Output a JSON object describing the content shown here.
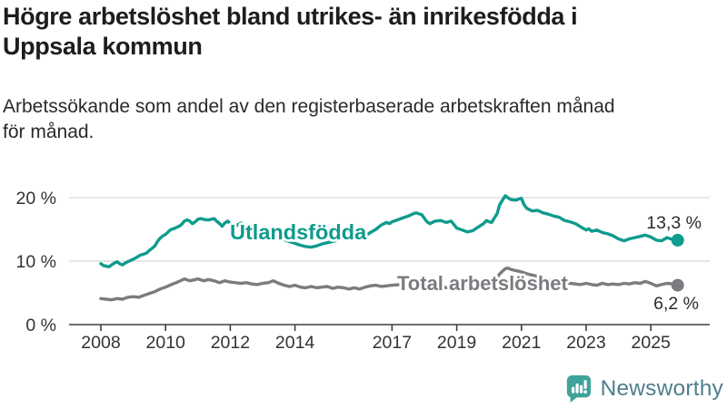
{
  "header": {
    "title_lines": [
      "Högre arbetslöshet bland utrikes- än inrikesfödda i",
      "Uppsala kommun"
    ],
    "subtitle_lines": [
      "Arbetssökande som andel av den registerbaserade arbetskraften månad",
      "för månad."
    ]
  },
  "chart_data": {
    "type": "line",
    "title": "Högre arbetslöshet bland utrikes- än inrikesfödda i Uppsala kommun",
    "subtitle": "Arbetssökande som andel av den registerbaserade arbetskraften månad för månad.",
    "unit": "%",
    "legend_position": "inline-labels",
    "grid": true,
    "colors": {
      "grid": "#d8d8d8",
      "axis": "#3f3f3f",
      "tick_label": "#333333",
      "value_label": "#2c2c2c"
    },
    "x_axis": {
      "ticks": [
        2008,
        2010,
        2012,
        2014,
        2017,
        2019,
        2021,
        2023,
        2025
      ],
      "range": [
        2007.9,
        2026.1
      ]
    },
    "y_axis": {
      "range": [
        0,
        21.5
      ],
      "ticks": [
        {
          "value": 0,
          "label": "0 %",
          "grid": false
        },
        {
          "value": 10,
          "label": "10 %",
          "grid": true
        },
        {
          "value": 20,
          "label": "20 %",
          "grid": true
        }
      ]
    },
    "series": [
      {
        "id": "utlandsfodda",
        "name": "Utlandsfödda",
        "color": "#0f9b8e",
        "end_label": "13,3 %",
        "end_value": 13.3,
        "points": [
          [
            2008.0,
            9.6
          ],
          [
            2008.08,
            9.3
          ],
          [
            2008.17,
            9.2
          ],
          [
            2008.25,
            9.1
          ],
          [
            2008.33,
            9.4
          ],
          [
            2008.42,
            9.7
          ],
          [
            2008.5,
            9.9
          ],
          [
            2008.58,
            9.6
          ],
          [
            2008.67,
            9.4
          ],
          [
            2008.75,
            9.7
          ],
          [
            2008.83,
            9.9
          ],
          [
            2008.92,
            10.1
          ],
          [
            2009.0,
            10.3
          ],
          [
            2009.08,
            10.5
          ],
          [
            2009.17,
            10.8
          ],
          [
            2009.25,
            11.0
          ],
          [
            2009.33,
            11.1
          ],
          [
            2009.42,
            11.3
          ],
          [
            2009.5,
            11.7
          ],
          [
            2009.58,
            12.0
          ],
          [
            2009.67,
            12.4
          ],
          [
            2009.75,
            13.1
          ],
          [
            2009.83,
            13.6
          ],
          [
            2009.92,
            14.0
          ],
          [
            2010.0,
            14.2
          ],
          [
            2010.08,
            14.6
          ],
          [
            2010.17,
            15.0
          ],
          [
            2010.25,
            15.1
          ],
          [
            2010.33,
            15.3
          ],
          [
            2010.42,
            15.5
          ],
          [
            2010.5,
            15.8
          ],
          [
            2010.58,
            16.3
          ],
          [
            2010.67,
            16.5
          ],
          [
            2010.75,
            16.3
          ],
          [
            2010.83,
            15.9
          ],
          [
            2010.92,
            16.2
          ],
          [
            2011.0,
            16.6
          ],
          [
            2011.08,
            16.7
          ],
          [
            2011.17,
            16.6
          ],
          [
            2011.25,
            16.5
          ],
          [
            2011.33,
            16.5
          ],
          [
            2011.42,
            16.6
          ],
          [
            2011.5,
            16.7
          ],
          [
            2011.58,
            16.3
          ],
          [
            2011.67,
            15.9
          ],
          [
            2011.75,
            15.5
          ],
          [
            2011.83,
            16.0
          ],
          [
            2011.92,
            16.3
          ],
          [
            2012.0,
            15.9
          ],
          [
            2012.08,
            15.7
          ],
          [
            2012.17,
            15.5
          ],
          [
            2012.25,
            15.8
          ],
          [
            2012.33,
            16.0
          ],
          [
            2012.5,
            15.7
          ],
          [
            2012.67,
            15.4
          ],
          [
            2012.83,
            15.1
          ],
          [
            2013.0,
            14.8
          ],
          [
            2013.25,
            14.3
          ],
          [
            2013.5,
            13.7
          ],
          [
            2013.75,
            13.2
          ],
          [
            2014.0,
            12.8
          ],
          [
            2014.17,
            12.5
          ],
          [
            2014.33,
            12.3
          ],
          [
            2014.5,
            12.2
          ],
          [
            2014.67,
            12.4
          ],
          [
            2014.83,
            12.7
          ],
          [
            2015.0,
            12.9
          ],
          [
            2015.25,
            13.2
          ],
          [
            2015.5,
            13.6
          ],
          [
            2015.75,
            13.9
          ],
          [
            2016.0,
            14.1
          ],
          [
            2016.17,
            14.0
          ],
          [
            2016.33,
            14.5
          ],
          [
            2016.5,
            15.0
          ],
          [
            2016.67,
            15.7
          ],
          [
            2016.83,
            16.1
          ],
          [
            2016.92,
            15.9
          ],
          [
            2017.0,
            16.2
          ],
          [
            2017.17,
            16.5
          ],
          [
            2017.33,
            16.8
          ],
          [
            2017.5,
            17.1
          ],
          [
            2017.67,
            17.5
          ],
          [
            2017.75,
            17.6
          ],
          [
            2017.92,
            17.3
          ],
          [
            2018.08,
            16.2
          ],
          [
            2018.17,
            15.9
          ],
          [
            2018.33,
            16.3
          ],
          [
            2018.5,
            16.4
          ],
          [
            2018.67,
            16.1
          ],
          [
            2018.83,
            16.3
          ],
          [
            2018.92,
            15.7
          ],
          [
            2019.0,
            15.2
          ],
          [
            2019.17,
            14.9
          ],
          [
            2019.33,
            14.6
          ],
          [
            2019.5,
            14.8
          ],
          [
            2019.67,
            15.4
          ],
          [
            2019.83,
            15.9
          ],
          [
            2019.92,
            16.4
          ],
          [
            2020.0,
            16.2
          ],
          [
            2020.08,
            16.1
          ],
          [
            2020.25,
            17.5
          ],
          [
            2020.33,
            18.9
          ],
          [
            2020.5,
            20.3
          ],
          [
            2020.58,
            20.0
          ],
          [
            2020.67,
            19.7
          ],
          [
            2020.83,
            19.6
          ],
          [
            2020.92,
            19.8
          ],
          [
            2021.0,
            19.9
          ],
          [
            2021.08,
            18.9
          ],
          [
            2021.17,
            18.3
          ],
          [
            2021.33,
            17.9
          ],
          [
            2021.5,
            18.0
          ],
          [
            2021.67,
            17.6
          ],
          [
            2021.83,
            17.4
          ],
          [
            2022.0,
            17.1
          ],
          [
            2022.17,
            16.9
          ],
          [
            2022.33,
            16.4
          ],
          [
            2022.5,
            16.2
          ],
          [
            2022.67,
            15.9
          ],
          [
            2022.83,
            15.4
          ],
          [
            2023.0,
            14.9
          ],
          [
            2023.08,
            15.1
          ],
          [
            2023.17,
            14.7
          ],
          [
            2023.33,
            14.9
          ],
          [
            2023.5,
            14.5
          ],
          [
            2023.67,
            14.3
          ],
          [
            2023.83,
            14.0
          ],
          [
            2024.0,
            13.5
          ],
          [
            2024.17,
            13.2
          ],
          [
            2024.33,
            13.5
          ],
          [
            2024.5,
            13.7
          ],
          [
            2024.67,
            13.9
          ],
          [
            2024.83,
            14.1
          ],
          [
            2025.0,
            13.8
          ],
          [
            2025.17,
            13.3
          ],
          [
            2025.33,
            13.2
          ],
          [
            2025.5,
            13.7
          ],
          [
            2025.67,
            13.4
          ],
          [
            2025.83,
            13.3
          ]
        ]
      },
      {
        "id": "total",
        "name": "Total arbetslöshet",
        "color": "#7b7b80",
        "end_label": "6,2 %",
        "end_value": 6.2,
        "points": [
          [
            2008.0,
            4.1
          ],
          [
            2008.17,
            4.0
          ],
          [
            2008.33,
            3.9
          ],
          [
            2008.5,
            4.1
          ],
          [
            2008.67,
            4.0
          ],
          [
            2008.83,
            4.3
          ],
          [
            2009.0,
            4.4
          ],
          [
            2009.17,
            4.3
          ],
          [
            2009.33,
            4.6
          ],
          [
            2009.5,
            4.9
          ],
          [
            2009.67,
            5.2
          ],
          [
            2009.83,
            5.6
          ],
          [
            2010.0,
            5.9
          ],
          [
            2010.17,
            6.3
          ],
          [
            2010.33,
            6.6
          ],
          [
            2010.5,
            7.0
          ],
          [
            2010.58,
            7.2
          ],
          [
            2010.75,
            6.9
          ],
          [
            2010.92,
            7.1
          ],
          [
            2011.0,
            7.2
          ],
          [
            2011.17,
            6.9
          ],
          [
            2011.33,
            7.1
          ],
          [
            2011.5,
            6.9
          ],
          [
            2011.67,
            6.6
          ],
          [
            2011.83,
            6.9
          ],
          [
            2012.0,
            6.7
          ],
          [
            2012.17,
            6.6
          ],
          [
            2012.33,
            6.5
          ],
          [
            2012.5,
            6.6
          ],
          [
            2012.67,
            6.4
          ],
          [
            2012.83,
            6.3
          ],
          [
            2013.0,
            6.5
          ],
          [
            2013.17,
            6.6
          ],
          [
            2013.33,
            6.9
          ],
          [
            2013.5,
            6.5
          ],
          [
            2013.67,
            6.2
          ],
          [
            2013.83,
            6.0
          ],
          [
            2014.0,
            6.2
          ],
          [
            2014.17,
            5.9
          ],
          [
            2014.33,
            5.8
          ],
          [
            2014.5,
            6.0
          ],
          [
            2014.67,
            5.8
          ],
          [
            2014.83,
            5.9
          ],
          [
            2015.0,
            6.0
          ],
          [
            2015.17,
            5.7
          ],
          [
            2015.33,
            5.9
          ],
          [
            2015.5,
            5.8
          ],
          [
            2015.67,
            5.6
          ],
          [
            2015.83,
            5.8
          ],
          [
            2016.0,
            5.6
          ],
          [
            2016.17,
            5.9
          ],
          [
            2016.33,
            6.1
          ],
          [
            2016.5,
            6.2
          ],
          [
            2016.67,
            6.0
          ],
          [
            2016.83,
            6.1
          ],
          [
            2017.0,
            6.2
          ],
          [
            2017.25,
            6.3
          ],
          [
            2017.5,
            6.3
          ],
          [
            2017.75,
            6.1
          ],
          [
            2018.0,
            6.0
          ],
          [
            2018.25,
            5.9
          ],
          [
            2018.5,
            5.9
          ],
          [
            2018.75,
            5.8
          ],
          [
            2019.0,
            5.8
          ],
          [
            2019.25,
            5.9
          ],
          [
            2019.5,
            6.0
          ],
          [
            2019.75,
            6.1
          ],
          [
            2020.0,
            6.3
          ],
          [
            2020.17,
            6.9
          ],
          [
            2020.33,
            8.0
          ],
          [
            2020.5,
            8.8
          ],
          [
            2020.58,
            8.9
          ],
          [
            2020.67,
            8.7
          ],
          [
            2020.83,
            8.5
          ],
          [
            2021.0,
            8.3
          ],
          [
            2021.17,
            8.0
          ],
          [
            2021.33,
            7.8
          ],
          [
            2021.5,
            7.6
          ],
          [
            2021.67,
            7.3
          ],
          [
            2021.83,
            7.1
          ],
          [
            2022.0,
            6.9
          ],
          [
            2022.17,
            6.7
          ],
          [
            2022.33,
            6.6
          ],
          [
            2022.5,
            6.5
          ],
          [
            2022.67,
            6.4
          ],
          [
            2022.83,
            6.3
          ],
          [
            2023.0,
            6.5
          ],
          [
            2023.17,
            6.3
          ],
          [
            2023.33,
            6.2
          ],
          [
            2023.5,
            6.5
          ],
          [
            2023.67,
            6.3
          ],
          [
            2023.83,
            6.4
          ],
          [
            2024.0,
            6.3
          ],
          [
            2024.17,
            6.5
          ],
          [
            2024.33,
            6.4
          ],
          [
            2024.5,
            6.6
          ],
          [
            2024.67,
            6.5
          ],
          [
            2024.83,
            6.8
          ],
          [
            2025.0,
            6.5
          ],
          [
            2025.17,
            6.1
          ],
          [
            2025.33,
            6.3
          ],
          [
            2025.5,
            6.5
          ],
          [
            2025.67,
            6.4
          ],
          [
            2025.83,
            6.2
          ]
        ]
      }
    ]
  },
  "footer": {
    "brand": "Newsworthy",
    "brand_icon": "newsworthy-bar-chart-bubble-icon",
    "brand_text_color": "#517e8d",
    "brand_icon_color": "#3fa39b"
  }
}
